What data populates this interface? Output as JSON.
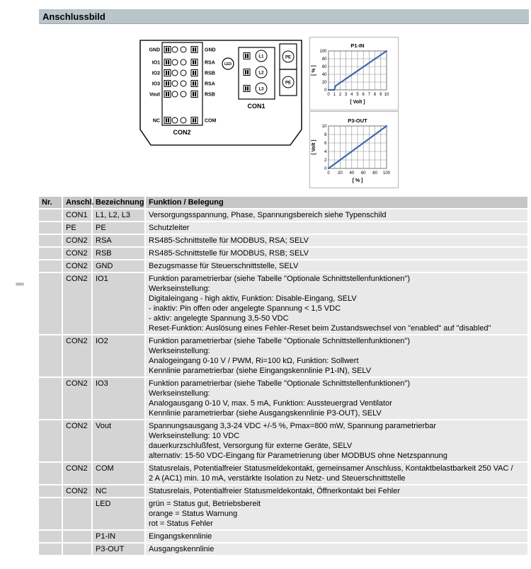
{
  "page": {
    "title": "Anschlussbild"
  },
  "colors": {
    "header_bar": "#b9c4cb",
    "table_header_bg": "#c6c6c6",
    "table_cell_gray": "#d4d4d4",
    "table_cell_light": "#e9e9e9",
    "chart_line": "#3a67ae",
    "chart_grid": "#8f8f8f"
  },
  "diagram": {
    "con2": {
      "label": "CON2",
      "rows": [
        {
          "left": "GND",
          "right": "GND"
        },
        {
          "left": "IO1",
          "right": "RSA"
        },
        {
          "left": "IO2",
          "right": "RSB"
        },
        {
          "left": "IO3",
          "right": "RSA"
        },
        {
          "left": "Vout",
          "right": "RSB"
        },
        {
          "left": "NC",
          "right": "COM"
        }
      ]
    },
    "led_label": "LED",
    "con1": {
      "label": "CON1",
      "rows": [
        "L1",
        "L2",
        "L3"
      ]
    },
    "pe_labels": [
      "PE",
      "PE"
    ]
  },
  "chart_data": [
    {
      "type": "line",
      "title": "P1-IN",
      "xlabel": "[ Volt ]",
      "ylabel": "[ % ]",
      "xlim": [
        0,
        10
      ],
      "ylim": [
        0,
        100
      ],
      "xticks": [
        0,
        1,
        2,
        3,
        4,
        5,
        6,
        7,
        8,
        9,
        10
      ],
      "yticks": [
        0,
        20,
        40,
        60,
        80,
        100
      ],
      "x_grid_interval": 1,
      "y_grid_interval": 20,
      "grid": true,
      "legend": "none",
      "series": [
        {
          "name": "P1-IN",
          "points": [
            [
              0,
              0
            ],
            [
              1,
              0
            ],
            [
              1.2,
              10
            ],
            [
              10,
              100
            ]
          ]
        }
      ]
    },
    {
      "type": "line",
      "title": "P3-OUT",
      "xlabel": "[ % ]",
      "ylabel": "[ Volt ]",
      "xlim": [
        0,
        100
      ],
      "ylim": [
        0,
        10
      ],
      "xticks": [
        0,
        20,
        40,
        60,
        80,
        100
      ],
      "yticks": [
        0,
        2,
        4,
        6,
        8,
        10
      ],
      "x_grid_interval": 10,
      "y_grid_interval": 2,
      "grid": true,
      "legend": "none",
      "series": [
        {
          "name": "P3-OUT",
          "points": [
            [
              0,
              0
            ],
            [
              100,
              10
            ]
          ]
        }
      ]
    }
  ],
  "table": {
    "headers": [
      "Nr.",
      "Anschl.",
      "Bezeichnung",
      "Funktion / Belegung"
    ],
    "rows": [
      {
        "nr": "",
        "anschl": "CON1",
        "bezeichnung": "L1, L2, L3",
        "funktion": [
          "Versorgungsspannung, Phase, Spannungsbereich siehe Typenschild"
        ]
      },
      {
        "nr": "",
        "anschl": "PE",
        "bezeichnung": "PE",
        "funktion": [
          "Schutzleiter"
        ]
      },
      {
        "nr": "",
        "anschl": "CON2",
        "bezeichnung": "RSA",
        "funktion": [
          "RS485-Schnittstelle für MODBUS, RSA; SELV"
        ]
      },
      {
        "nr": "",
        "anschl": "CON2",
        "bezeichnung": "RSB",
        "funktion": [
          "RS485-Schnittstelle für MODBUS, RSB; SELV"
        ]
      },
      {
        "nr": "",
        "anschl": "CON2",
        "bezeichnung": "GND",
        "funktion": [
          "Bezugsmasse für Steuerschnittstelle, SELV"
        ]
      },
      {
        "nr": "",
        "anschl": "CON2",
        "bezeichnung": "IO1",
        "funktion": [
          "Funktion parametrierbar (siehe Tabelle \"Optionale Schnittstellenfunktionen\")",
          "Werkseinstellung:",
          "Digitaleingang - high aktiv, Funktion: Disable-Eingang, SELV",
          "- inaktiv: Pin offen oder angelegte Spannung < 1,5 VDC",
          "- aktiv: angelegte Spannung 3,5-50 VDC",
          "Reset-Funktion: Auslösung eines Fehler-Reset beim Zustandswechsel von \"enabled\" auf \"disabled\""
        ]
      },
      {
        "nr": "",
        "anschl": "CON2",
        "bezeichnung": "IO2",
        "funktion": [
          "Funktion parametrierbar (siehe Tabelle \"Optionale Schnittstellenfunktionen\")",
          "Werkseinstellung:",
          "Analogeingang 0-10 V / PWM, Ri=100 kΩ, Funktion: Sollwert",
          "Kennlinie parametrierbar (siehe Eingangskennlinie P1-IN), SELV"
        ]
      },
      {
        "nr": "",
        "anschl": "CON2",
        "bezeichnung": "IO3",
        "funktion": [
          "Funktion parametrierbar (siehe Tabelle \"Optionale Schnittstellenfunktionen\")",
          "Werkseinstellung:",
          "Analogausgang 0-10 V, max. 5 mA, Funktion: Aussteuergrad Ventilator",
          "Kennlinie parametrierbar (siehe Ausgangskennlinie P3-OUT), SELV"
        ]
      },
      {
        "nr": "",
        "anschl": "CON2",
        "bezeichnung": "Vout",
        "funktion": [
          "Spannungsausgang 3,3-24 VDC +/-5 %, Pmax=800 mW, Spannung parametrierbar",
          "Werkseinstellung: 10 VDC",
          "dauerkurzschlußfest, Versorgung für externe Geräte, SELV",
          "alternativ: 15-50 VDC-Eingang für Parametrierung über MODBUS ohne Netzspannung"
        ]
      },
      {
        "nr": "",
        "anschl": "CON2",
        "bezeichnung": "COM",
        "funktion": [
          "Statusrelais, Potentialfreier Statusmeldekontakt, gemeinsamer Anschluss, Kontaktbelastbarkeit 250 VAC /",
          "2 A (AC1) min. 10 mA, verstärkte Isolation zu Netz- und Steuerschnittstelle"
        ]
      },
      {
        "nr": "",
        "anschl": "CON2",
        "bezeichnung": "NC",
        "funktion": [
          "Statusrelais, Potentialfreier Statusmeldekontakt, Öffnerkontakt bei Fehler"
        ]
      },
      {
        "nr": "",
        "anschl": "",
        "bezeichnung": "LED",
        "funktion": [
          "grün = Status gut, Betriebsbereit",
          "orange = Status Warnung",
          "rot = Status Fehler"
        ]
      },
      {
        "nr": "",
        "anschl": "",
        "bezeichnung": "P1-IN",
        "funktion": [
          "Eingangskennlinie"
        ]
      },
      {
        "nr": "",
        "anschl": "",
        "bezeichnung": "P3-OUT",
        "funktion": [
          "Ausgangskennlinie"
        ]
      }
    ]
  }
}
